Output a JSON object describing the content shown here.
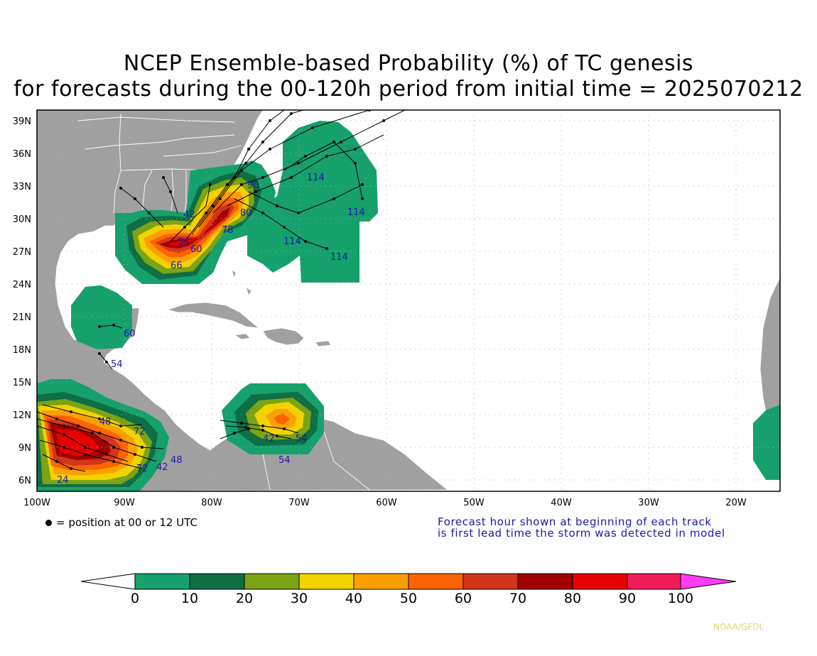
{
  "title": {
    "line1": "NCEP Ensemble-based Probability (%) of TC genesis",
    "line2": "for forecasts during the 00-120h period from initial time = 2025070212"
  },
  "map": {
    "lat_labels": [
      "39N",
      "36N",
      "33N",
      "30N",
      "27N",
      "24N",
      "21N",
      "18N",
      "15N",
      "12N",
      "9N",
      "6N"
    ],
    "lon_labels": [
      "100W",
      "90W",
      "80W",
      "70W",
      "60W",
      "50W",
      "40W",
      "30W",
      "20W"
    ],
    "colors": {
      "ocean": "#ffffff",
      "land": "#a0a0a0",
      "grid": "#b0b0b0",
      "track": "#000000",
      "forecast_hour_text": "#1a1aa6"
    }
  },
  "forecast_hours": {
    "gulf_northeast": [
      "114",
      "114",
      "114",
      "114"
    ],
    "gulf_central": [
      "60",
      "54",
      "66",
      "78",
      "90",
      "80",
      "42"
    ],
    "western_caribbean": [
      "60",
      "54"
    ],
    "east_pacific": [
      "48",
      "72",
      "48",
      "42",
      "24",
      "72"
    ],
    "southern_caribbean": [
      "42",
      "54",
      "54"
    ]
  },
  "legend": {
    "position_note": "= position at 00 or 12 UTC",
    "fhr_note_line1": "Forecast hour shown at beginning of each track",
    "fhr_note_line2": "is first lead time the storm was detected in model"
  },
  "colorbar": {
    "labels": [
      "0",
      "10",
      "20",
      "30",
      "40",
      "50",
      "60",
      "70",
      "80",
      "90",
      "100"
    ],
    "colors": [
      "#ffffff",
      "#16a06c",
      "#0e6e44",
      "#7ba314",
      "#f2d300",
      "#fba000",
      "#fb6400",
      "#d2341c",
      "#a00000",
      "#e60000",
      "#f01c5a",
      "#ff3cf0"
    ]
  },
  "credit": "NOAA/GFDL"
}
